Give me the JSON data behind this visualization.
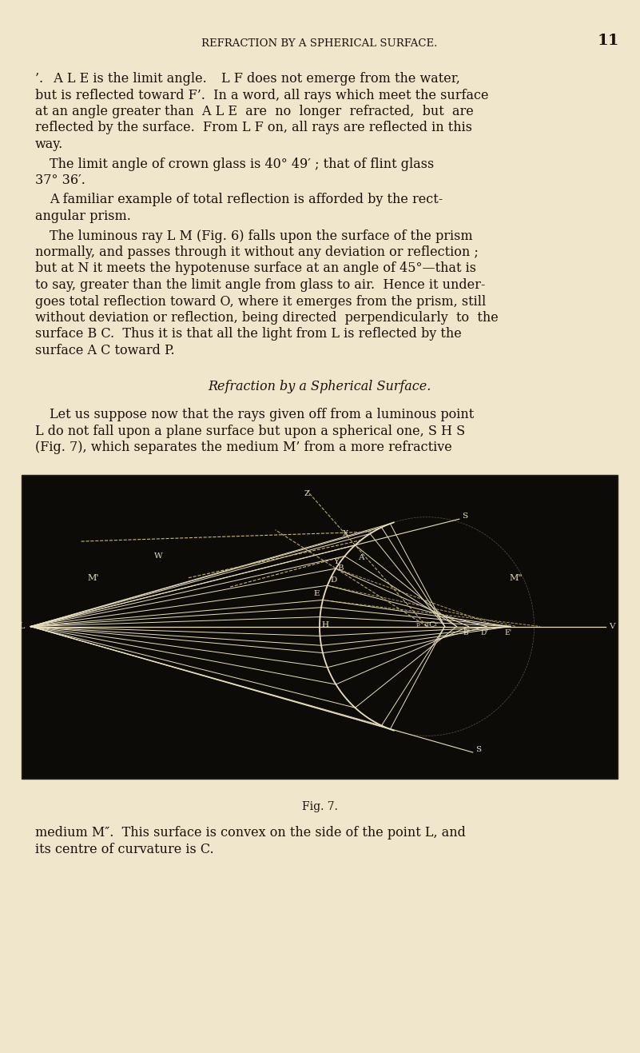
{
  "bg_color": "#f0e6cc",
  "fig_bg": "#f0e6cc",
  "page_width": 8.01,
  "page_height": 13.17,
  "header_text": "REFRACTION BY A SPHERICAL SURFACE.",
  "page_num": "11",
  "diagram_bg": "#0d0b08",
  "wc": "#e8dfc0",
  "dc": "#c8b878"
}
